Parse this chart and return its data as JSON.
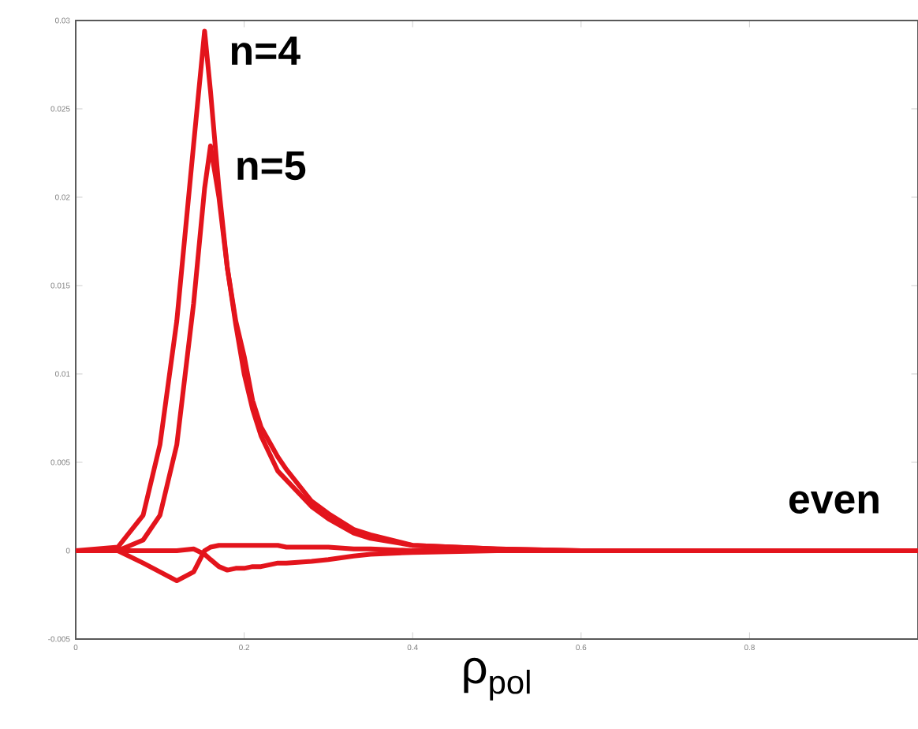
{
  "chart_data": {
    "type": "line",
    "xlabel": "ρ$_{pol}$",
    "x": [
      0,
      0.05,
      0.08,
      0.1,
      0.12,
      0.14,
      0.153,
      0.16,
      0.17,
      0.18,
      0.19,
      0.2,
      0.21,
      0.22,
      0.24,
      0.25,
      0.28,
      0.3,
      0.33,
      0.35,
      0.4,
      0.5,
      0.6,
      1
    ],
    "series": [
      {
        "name": "n=4",
        "color": "#e3141c",
        "values": [
          0,
          0.0002,
          0.002,
          0.006,
          0.013,
          0.023,
          0.0294,
          0.026,
          0.0205,
          0.016,
          0.0128,
          0.01,
          0.008,
          0.0065,
          0.0045,
          0.004,
          0.0025,
          0.0018,
          0.001,
          0.0007,
          0.0003,
          0.0001,
          0,
          0
        ]
      },
      {
        "name": "n=5",
        "color": "#e3141c",
        "values": [
          0,
          0,
          0.0006,
          0.002,
          0.006,
          0.014,
          0.0205,
          0.0229,
          0.02,
          0.016,
          0.013,
          0.011,
          0.0085,
          0.007,
          0.0053,
          0.0046,
          0.0028,
          0.0021,
          0.0012,
          0.0009,
          0.0003,
          0.0001,
          0,
          0
        ]
      },
      {
        "name": "even",
        "color": "#e3141c",
        "values": [
          0,
          0,
          -0.0007,
          -0.0012,
          -0.0017,
          -0.0012,
          0,
          0.0002,
          0.0003,
          0.0003,
          0.0003,
          0.0003,
          0.0003,
          0.0003,
          0.0003,
          0.0002,
          0.0002,
          0.0002,
          0.0001,
          0.0001,
          0,
          0,
          0,
          0
        ]
      },
      {
        "color": "#e3141c",
        "values": [
          0,
          0,
          0,
          0,
          0,
          0.0001,
          -0.0002,
          -0.0005,
          -0.0009,
          -0.0011,
          -0.001,
          -0.001,
          -0.0009,
          -0.0009,
          -0.0007,
          -0.0007,
          -0.0006,
          -0.0005,
          -0.0003,
          -0.0002,
          -0.0001,
          0,
          0,
          0
        ]
      }
    ],
    "xlim": [
      0,
      1
    ],
    "ylim": [
      -0.005,
      0.03
    ],
    "xticks": [
      0,
      0.2,
      0.4,
      0.6,
      0.8
    ],
    "yticks": [
      -0.005,
      0,
      0.005,
      0.01,
      0.015,
      0.02,
      0.025,
      0.03
    ],
    "grid": false,
    "marker": "none",
    "line_style": "solid"
  }
}
